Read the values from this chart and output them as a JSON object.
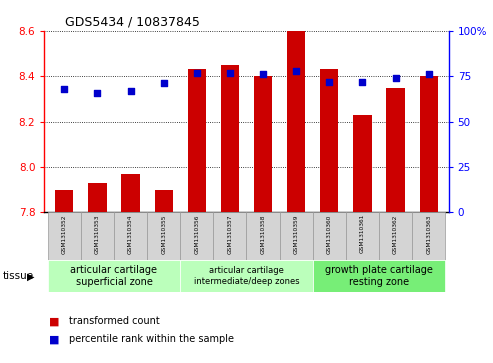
{
  "title": "GDS5434 / 10837845",
  "samples": [
    "GSM1310352",
    "GSM1310353",
    "GSM1310354",
    "GSM1310355",
    "GSM1310356",
    "GSM1310357",
    "GSM1310358",
    "GSM1310359",
    "GSM1310360",
    "GSM1310361",
    "GSM1310362",
    "GSM1310363"
  ],
  "transformed_count": [
    7.9,
    7.93,
    7.97,
    7.9,
    8.43,
    8.45,
    8.4,
    8.6,
    8.43,
    8.23,
    8.35,
    8.4
  ],
  "percentile_rank": [
    68,
    66,
    67,
    71,
    77,
    77,
    76,
    78,
    72,
    72,
    74,
    76
  ],
  "ylim_left": [
    7.8,
    8.6
  ],
  "ylim_right": [
    0,
    100
  ],
  "yticks_left": [
    7.8,
    8.0,
    8.2,
    8.4,
    8.6
  ],
  "yticks_right": [
    0,
    25,
    50,
    75,
    100
  ],
  "bar_color": "#cc0000",
  "dot_color": "#0000cc",
  "bar_bottom": 7.8,
  "tissue_groups": [
    {
      "label": "articular cartilage\nsuperficial zone",
      "start": 0,
      "end": 4,
      "fontsize": 7
    },
    {
      "label": "articular cartilage\nintermediate/deep zones",
      "start": 4,
      "end": 8,
      "fontsize": 6
    },
    {
      "label": "growth plate cartilage\nresting zone",
      "start": 8,
      "end": 12,
      "fontsize": 7
    }
  ],
  "tissue_colors": [
    "#bbffbb",
    "#bbffbb",
    "#77ee77"
  ],
  "tissue_label": "tissue",
  "legend_bar_label": "transformed count",
  "legend_dot_label": "percentile rank within the sample",
  "background_color": "#ffffff",
  "plot_bg_color": "#ffffff",
  "sample_box_color": "#d4d4d4",
  "grid_color": "#000000",
  "spine_bottom_color": "#000000"
}
